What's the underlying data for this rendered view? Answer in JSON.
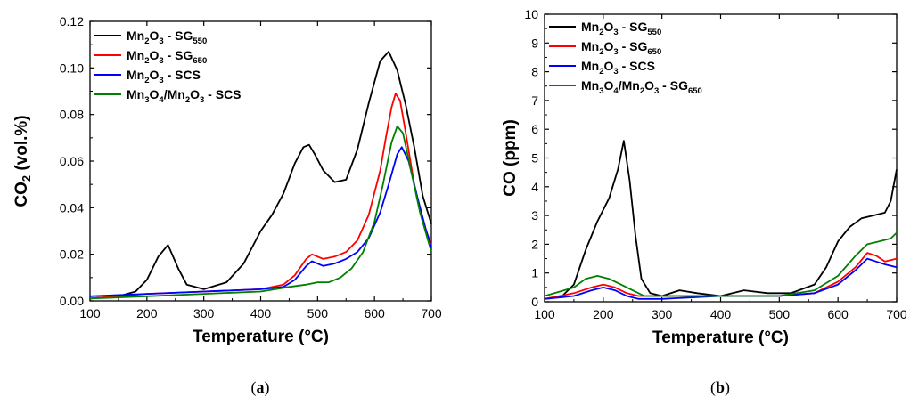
{
  "chart_data": [
    {
      "type": "line",
      "panel_label": "(a)",
      "xlabel": "Temperature (°C)",
      "ylabel": "CO2 (vol.%)",
      "xlim": [
        100,
        700
      ],
      "ylim": [
        0,
        0.12
      ],
      "xticks": [
        "100",
        "200",
        "300",
        "400",
        "500",
        "600",
        "700"
      ],
      "yticks": [
        "0.00",
        "0.02",
        "0.04",
        "0.06",
        "0.08",
        "0.10",
        "0.12"
      ],
      "grid": false,
      "legend_position": "top-left",
      "series": [
        {
          "name": "Mn2O3 - SG550",
          "color": "#000000",
          "x": [
            100,
            150,
            180,
            200,
            220,
            237,
            255,
            270,
            300,
            340,
            370,
            400,
            420,
            440,
            460,
            475,
            485,
            495,
            510,
            530,
            550,
            570,
            590,
            610,
            625,
            640,
            655,
            670,
            685,
            700
          ],
          "y": [
            0.001,
            0.002,
            0.004,
            0.009,
            0.019,
            0.024,
            0.014,
            0.007,
            0.005,
            0.008,
            0.016,
            0.03,
            0.037,
            0.046,
            0.059,
            0.066,
            0.067,
            0.063,
            0.056,
            0.051,
            0.052,
            0.065,
            0.085,
            0.103,
            0.107,
            0.099,
            0.084,
            0.066,
            0.045,
            0.033
          ]
        },
        {
          "name": "Mn2O3 - SG650",
          "color": "#ff0000",
          "x": [
            100,
            200,
            300,
            400,
            440,
            460,
            480,
            490,
            510,
            530,
            550,
            570,
            590,
            610,
            620,
            630,
            637,
            645,
            655,
            670,
            685,
            700
          ],
          "y": [
            0.001,
            0.003,
            0.004,
            0.005,
            0.007,
            0.011,
            0.018,
            0.02,
            0.018,
            0.019,
            0.021,
            0.026,
            0.037,
            0.056,
            0.07,
            0.083,
            0.089,
            0.086,
            0.072,
            0.05,
            0.034,
            0.024
          ]
        },
        {
          "name": "Mn2O3 - SCS",
          "color": "#0000ff",
          "x": [
            100,
            200,
            300,
            400,
            440,
            460,
            480,
            490,
            510,
            530,
            550,
            570,
            590,
            610,
            625,
            640,
            648,
            660,
            675,
            690,
            700
          ],
          "y": [
            0.002,
            0.003,
            0.004,
            0.005,
            0.006,
            0.009,
            0.015,
            0.017,
            0.015,
            0.016,
            0.018,
            0.021,
            0.027,
            0.038,
            0.05,
            0.063,
            0.066,
            0.06,
            0.045,
            0.031,
            0.023
          ]
        },
        {
          "name": "Mn3O4/Mn2O3 - SCS",
          "color": "#008000",
          "x": [
            100,
            200,
            300,
            400,
            450,
            480,
            500,
            520,
            540,
            560,
            580,
            600,
            615,
            630,
            640,
            650,
            665,
            680,
            700
          ],
          "y": [
            0.001,
            0.002,
            0.003,
            0.004,
            0.006,
            0.007,
            0.008,
            0.008,
            0.01,
            0.014,
            0.021,
            0.034,
            0.05,
            0.068,
            0.075,
            0.072,
            0.055,
            0.038,
            0.021
          ]
        }
      ]
    },
    {
      "type": "line",
      "panel_label": "(b)",
      "xlabel": "Temperature (°C)",
      "ylabel": "CO (ppm)",
      "xlim": [
        100,
        700
      ],
      "ylim": [
        0,
        10
      ],
      "xticks": [
        "100",
        "200",
        "300",
        "400",
        "500",
        "600",
        "700"
      ],
      "yticks": [
        "0",
        "1",
        "2",
        "3",
        "4",
        "5",
        "6",
        "7",
        "8",
        "9",
        "10"
      ],
      "grid": false,
      "legend_position": "top-left",
      "series": [
        {
          "name": "Mn2O3 - SG550",
          "color": "#000000",
          "x": [
            100,
            130,
            150,
            170,
            190,
            210,
            225,
            235,
            245,
            255,
            265,
            280,
            300,
            330,
            360,
            400,
            440,
            480,
            520,
            560,
            580,
            600,
            620,
            640,
            660,
            680,
            690,
            700
          ],
          "y": [
            0.1,
            0.2,
            0.6,
            1.8,
            2.8,
            3.6,
            4.6,
            5.6,
            4.2,
            2.3,
            0.8,
            0.3,
            0.2,
            0.4,
            0.3,
            0.2,
            0.4,
            0.3,
            0.3,
            0.6,
            1.2,
            2.1,
            2.6,
            2.9,
            3.0,
            3.1,
            3.5,
            4.6
          ]
        },
        {
          "name": "Mn2O3 - SG650",
          "color": "#ff0000",
          "x": [
            100,
            150,
            180,
            200,
            220,
            240,
            260,
            300,
            400,
            500,
            560,
            600,
            630,
            650,
            665,
            680,
            700
          ],
          "y": [
            0.1,
            0.3,
            0.5,
            0.6,
            0.5,
            0.3,
            0.2,
            0.2,
            0.2,
            0.2,
            0.3,
            0.7,
            1.2,
            1.7,
            1.6,
            1.4,
            1.5
          ]
        },
        {
          "name": "Mn2O3 - SCS",
          "color": "#0000ff",
          "x": [
            100,
            150,
            180,
            200,
            220,
            240,
            260,
            300,
            400,
            500,
            560,
            600,
            630,
            650,
            665,
            680,
            700
          ],
          "y": [
            0.1,
            0.2,
            0.4,
            0.5,
            0.4,
            0.2,
            0.1,
            0.1,
            0.2,
            0.2,
            0.3,
            0.6,
            1.1,
            1.5,
            1.4,
            1.3,
            1.2
          ]
        },
        {
          "name": "Mn3O4/Mn2O3 - SG650",
          "color": "#008000",
          "x": [
            100,
            150,
            170,
            190,
            210,
            230,
            250,
            270,
            300,
            400,
            500,
            560,
            600,
            630,
            650,
            670,
            690,
            700
          ],
          "y": [
            0.2,
            0.5,
            0.8,
            0.9,
            0.8,
            0.6,
            0.4,
            0.2,
            0.2,
            0.2,
            0.2,
            0.4,
            0.9,
            1.6,
            2.0,
            2.1,
            2.2,
            2.4
          ]
        }
      ]
    }
  ]
}
